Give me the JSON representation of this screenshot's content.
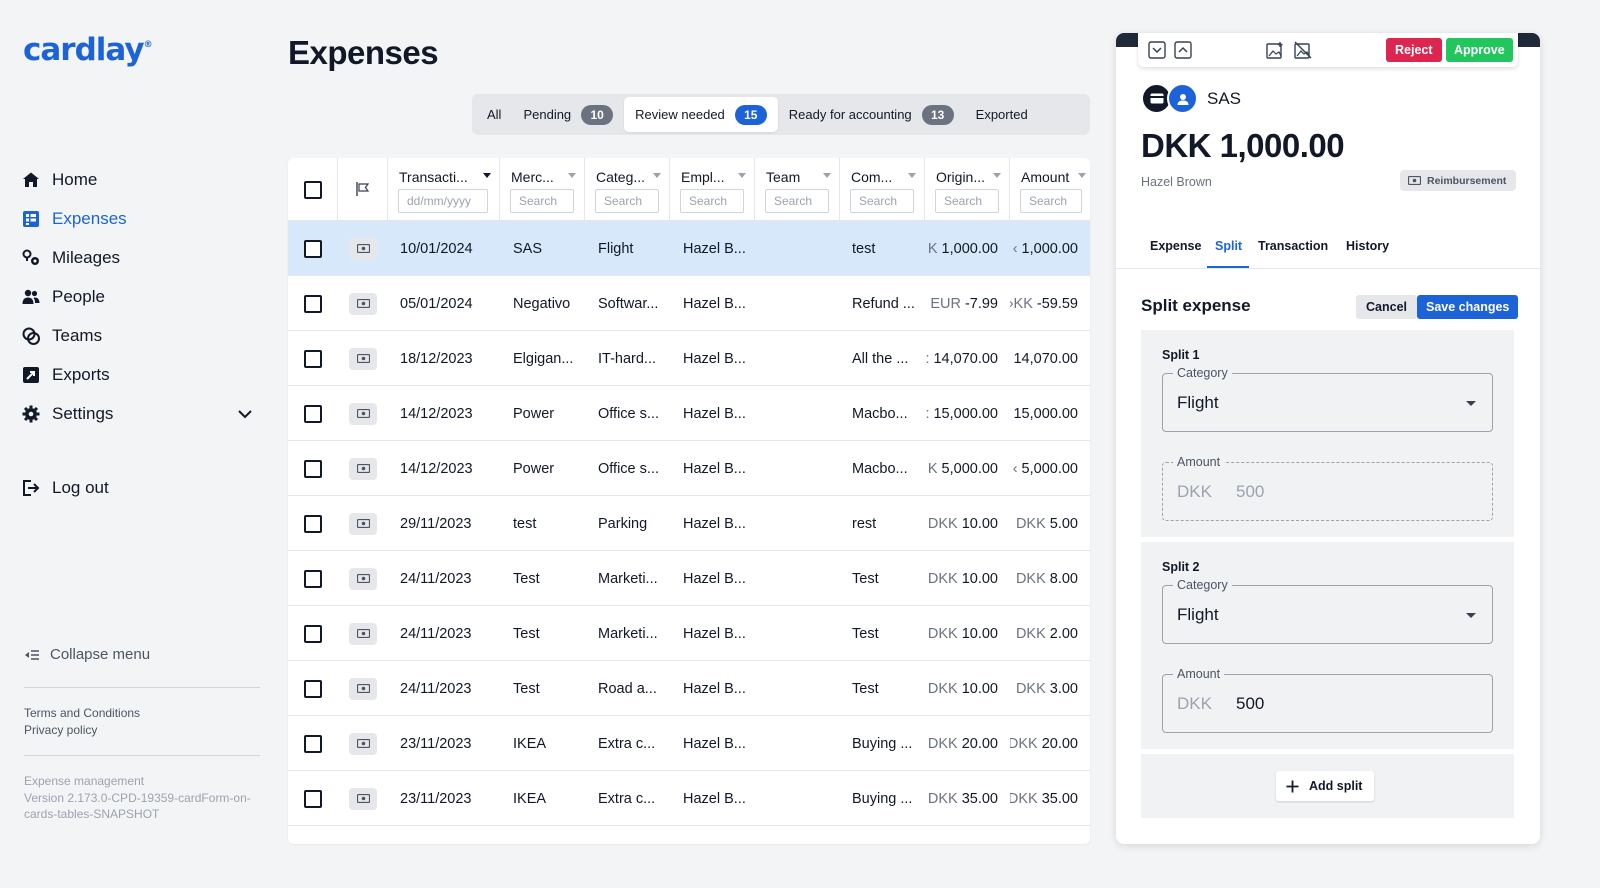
{
  "app": {
    "logo": "cardlay",
    "logo_mark": "®"
  },
  "sidebar": {
    "items": [
      {
        "label": "Home",
        "icon": "home-icon"
      },
      {
        "label": "Expenses",
        "icon": "expenses-icon"
      },
      {
        "label": "Mileages",
        "icon": "mileages-icon"
      },
      {
        "label": "People",
        "icon": "people-icon"
      },
      {
        "label": "Teams",
        "icon": "teams-icon"
      },
      {
        "label": "Exports",
        "icon": "exports-icon"
      },
      {
        "label": "Settings",
        "icon": "gear-icon"
      }
    ],
    "logout": "Log out",
    "collapse": "Collapse menu",
    "terms": "Terms and Conditions",
    "privacy": "Privacy policy",
    "version_title": "Expense management",
    "version": "Version 2.173.0-CPD-19359-cardForm-on-cards-tables-SNAPSHOT"
  },
  "page": {
    "title": "Expenses"
  },
  "filter_tabs": [
    {
      "label": "All"
    },
    {
      "label": "Pending",
      "count": "10"
    },
    {
      "label": "Review needed",
      "count": "15"
    },
    {
      "label": "Ready for accounting",
      "count": "13"
    },
    {
      "label": "Exported"
    }
  ],
  "table": {
    "columns": [
      {
        "label": "Transacti...",
        "placeholder": "dd/mm/yyyy"
      },
      {
        "label": "Merc...",
        "placeholder": "Search"
      },
      {
        "label": "Categ...",
        "placeholder": "Search"
      },
      {
        "label": "Empl...",
        "placeholder": "Search"
      },
      {
        "label": "Team",
        "placeholder": "Search"
      },
      {
        "label": "Com...",
        "placeholder": "Search"
      },
      {
        "label": "Origin...",
        "placeholder": "Search"
      },
      {
        "label": "Amount",
        "placeholder": "Search"
      }
    ],
    "rows": [
      {
        "date": "10/01/2024",
        "merchant": "SAS",
        "category": "Flight",
        "employee": "Hazel B...",
        "team": "",
        "comment": "test",
        "orig_cur": "K",
        "orig_amt": "1,000.00",
        "amt_cur": "‹",
        "amt": "1,000.00"
      },
      {
        "date": "05/01/2024",
        "merchant": "Negativo",
        "category": "Softwar...",
        "employee": "Hazel B...",
        "team": "",
        "comment": "Refund ...",
        "orig_cur": "EUR",
        "orig_amt": "-7.99",
        "amt_cur": "›KK",
        "amt": "-59.59"
      },
      {
        "date": "18/12/2023",
        "merchant": "Elgigan...",
        "category": "IT-hard...",
        "employee": "Hazel B...",
        "team": "",
        "comment": "All the ...",
        "orig_cur": ":",
        "orig_amt": "14,070.00",
        "amt_cur": "",
        "amt": "14,070.00"
      },
      {
        "date": "14/12/2023",
        "merchant": "Power",
        "category": "Office s...",
        "employee": "Hazel B...",
        "team": "",
        "comment": "Macbo...",
        "orig_cur": ":",
        "orig_amt": "15,000.00",
        "amt_cur": "",
        "amt": "15,000.00"
      },
      {
        "date": "14/12/2023",
        "merchant": "Power",
        "category": "Office s...",
        "employee": "Hazel B...",
        "team": "",
        "comment": "Macbo...",
        "orig_cur": "K",
        "orig_amt": "5,000.00",
        "amt_cur": "‹",
        "amt": "5,000.00"
      },
      {
        "date": "29/11/2023",
        "merchant": "test",
        "category": "Parking",
        "employee": "Hazel B...",
        "team": "",
        "comment": "rest",
        "orig_cur": "DKK",
        "orig_amt": "10.00",
        "amt_cur": "DKK",
        "amt": "5.00"
      },
      {
        "date": "24/11/2023",
        "merchant": "Test",
        "category": "Marketi...",
        "employee": "Hazel B...",
        "team": "",
        "comment": "Test",
        "orig_cur": "DKK",
        "orig_amt": "10.00",
        "amt_cur": "DKK",
        "amt": "8.00"
      },
      {
        "date": "24/11/2023",
        "merchant": "Test",
        "category": "Marketi...",
        "employee": "Hazel B...",
        "team": "",
        "comment": "Test",
        "orig_cur": "DKK",
        "orig_amt": "10.00",
        "amt_cur": "DKK",
        "amt": "2.00"
      },
      {
        "date": "24/11/2023",
        "merchant": "Test",
        "category": "Road a...",
        "employee": "Hazel B...",
        "team": "",
        "comment": "Test",
        "orig_cur": "DKK",
        "orig_amt": "10.00",
        "amt_cur": "DKK",
        "amt": "3.00"
      },
      {
        "date": "23/11/2023",
        "merchant": "IKEA",
        "category": "Extra c...",
        "employee": "Hazel B...",
        "team": "",
        "comment": "Buying ...",
        "orig_cur": "DKK",
        "orig_amt": "20.00",
        "amt_cur": "DKK",
        "amt": "20.00"
      },
      {
        "date": "23/11/2023",
        "merchant": "IKEA",
        "category": "Extra c...",
        "employee": "Hazel B...",
        "team": "",
        "comment": "Buying ...",
        "orig_cur": "DKK",
        "orig_amt": "35.00",
        "amt_cur": "DKK",
        "amt": "35.00"
      }
    ]
  },
  "detail": {
    "reject": "Reject",
    "approve": "Approve",
    "merchant": "SAS",
    "amount": "DKK 1,000.00",
    "employee": "Hazel Brown",
    "type_badge": "Reimbursement",
    "tabs": [
      "Expense",
      "Split",
      "Transaction",
      "History"
    ],
    "split_title": "Split expense",
    "cancel": "Cancel",
    "save": "Save changes",
    "category_label": "Category",
    "amount_label": "Amount",
    "splits": [
      {
        "title": "Split 1",
        "category": "Flight",
        "currency": "DKK",
        "amount": "500"
      },
      {
        "title": "Split 2",
        "category": "Flight",
        "currency": "DKK",
        "amount": "500"
      }
    ],
    "add_split": "Add split"
  },
  "colors": {
    "accent": "#1d63d8",
    "reject": "#dc2650",
    "approve": "#22c55e",
    "selected_row": "#d7e8fb"
  }
}
